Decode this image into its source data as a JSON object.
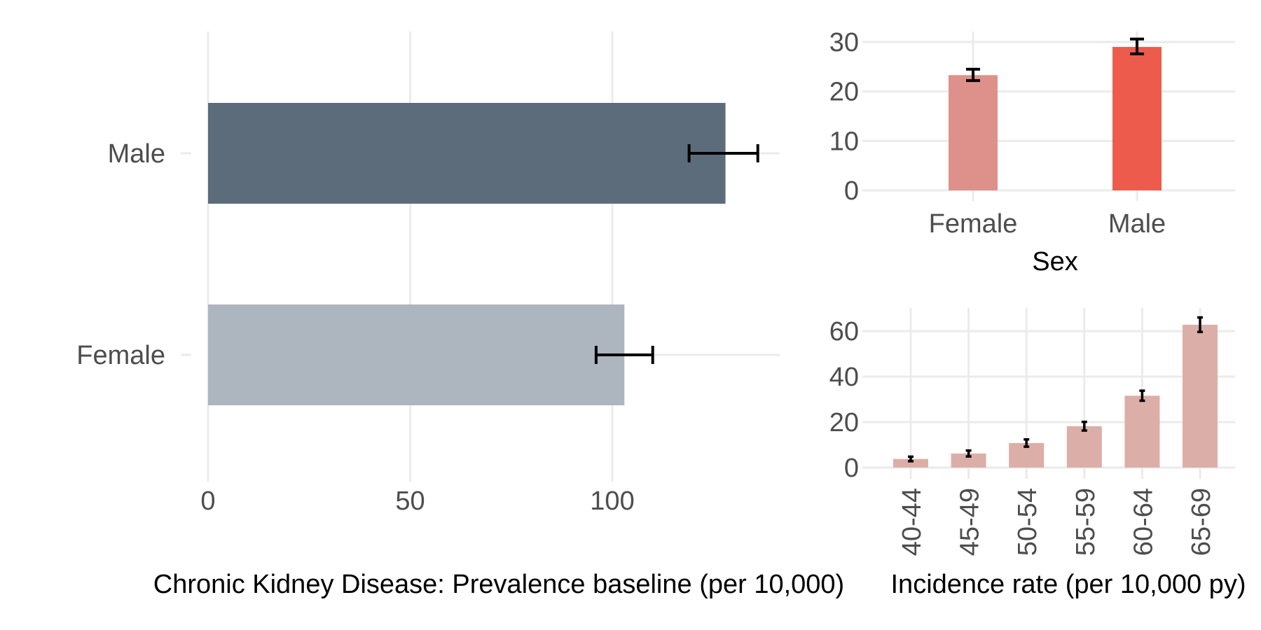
{
  "chart_data": [
    {
      "type": "bar",
      "orientation": "horizontal",
      "categories": [
        "Female",
        "Male"
      ],
      "values": [
        103,
        128
      ],
      "error_low": [
        96,
        119
      ],
      "error_high": [
        110,
        136
      ],
      "colors": [
        "#adb5bf",
        "#5d6c7b"
      ],
      "xlabel": "Chronic Kidney Disease: Prevalence baseline (per 10,000)",
      "ylabel": "",
      "xlim": [
        0,
        140
      ],
      "xticks": [
        "0",
        "50",
        "100"
      ],
      "grid": true
    },
    {
      "type": "bar",
      "categories": [
        "Female",
        "Male"
      ],
      "values": [
        23.3,
        29.0
      ],
      "error_low": [
        22.2,
        27.6
      ],
      "error_high": [
        24.5,
        30.6
      ],
      "colors": [
        "#de918a",
        "#ec5b4c"
      ],
      "xlabel": "Sex",
      "ylabel": "",
      "ylim": [
        0,
        32
      ],
      "yticks": [
        "0",
        "10",
        "20",
        "30"
      ],
      "grid": true
    },
    {
      "type": "bar",
      "categories": [
        "40-44",
        "45-49",
        "50-54",
        "55-59",
        "60-64",
        "65-69"
      ],
      "values": [
        3.8,
        6.2,
        10.8,
        18.2,
        31.6,
        62.8
      ],
      "error_low": [
        2.8,
        4.9,
        9.2,
        16.3,
        29.4,
        59.6
      ],
      "error_high": [
        4.8,
        7.5,
        12.4,
        20.1,
        33.8,
        66.0
      ],
      "color": "#dcaea8",
      "xlabel": "Incidence rate (per 10,000 py)",
      "ylabel": "",
      "ylim": [
        0,
        70
      ],
      "yticks": [
        "0",
        "20",
        "40",
        "60"
      ],
      "grid": true
    }
  ]
}
